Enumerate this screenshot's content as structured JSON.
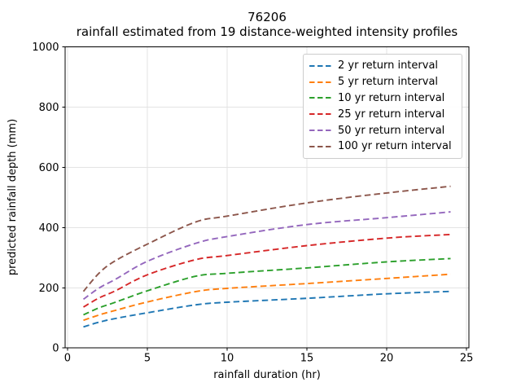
{
  "figure": {
    "kind": "matplotlib-line-chart"
  },
  "chart_data": {
    "type": "line",
    "title": "76206",
    "subtitle": "rainfall estimated from 19 distance-weighted intensity profiles",
    "xlabel": "rainfall duration (hr)",
    "ylabel": "predicted rainfall depth (mm)",
    "x_ticks": [
      0,
      5,
      10,
      15,
      20,
      25
    ],
    "y_ticks": [
      0,
      200,
      400,
      600,
      800,
      1000
    ],
    "xlim": [
      -0.15,
      25.15
    ],
    "ylim": [
      0,
      1000
    ],
    "grid": true,
    "grid_color": "#e3e3e3",
    "line_style": "dashed",
    "legend_position": "upper right",
    "x": [
      1,
      2,
      3,
      5,
      8,
      10,
      15,
      20,
      24
    ],
    "series": [
      {
        "name": "2 yr return interval",
        "color": "#1f77b4",
        "values": [
          70,
          86,
          98,
          117,
          143,
          152,
          165,
          180,
          188
        ]
      },
      {
        "name": "5 yr return interval",
        "color": "#ff7f0e",
        "values": [
          92,
          110,
          125,
          153,
          187,
          198,
          214,
          231,
          245
        ]
      },
      {
        "name": "10 yr return interval",
        "color": "#2ca02c",
        "values": [
          110,
          134,
          152,
          190,
          238,
          248,
          266,
          286,
          297
        ]
      },
      {
        "name": "25 yr return interval",
        "color": "#d62728",
        "values": [
          136,
          167,
          190,
          243,
          293,
          307,
          340,
          365,
          377
        ]
      },
      {
        "name": "50 yr return interval",
        "color": "#9467bd",
        "values": [
          162,
          200,
          228,
          288,
          347,
          370,
          410,
          433,
          452
        ]
      },
      {
        "name": "100 yr return interval",
        "color": "#8c564b",
        "values": [
          188,
          250,
          290,
          345,
          418,
          438,
          482,
          515,
          537
        ]
      }
    ]
  }
}
